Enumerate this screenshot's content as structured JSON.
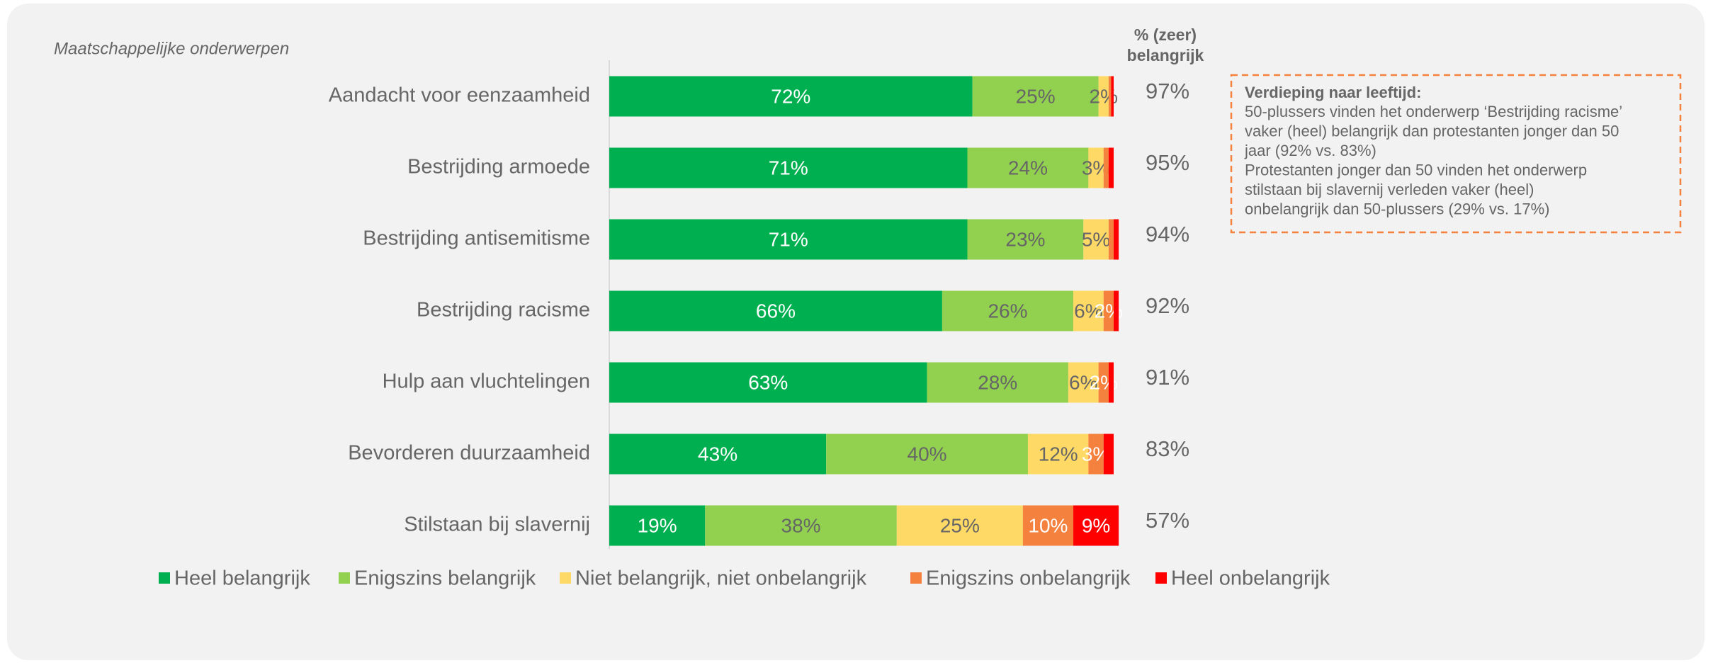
{
  "chart_data": {
    "type": "stacked_barh",
    "subtitle": "Maatschappelijke onderwerpen",
    "categories": [
      "Aandacht voor eenzaamheid",
      "Bestrijding armoede",
      "Bestrijding antisemitisme",
      "Bestrijding racisme",
      "Hulp aan vluchtelingen",
      "Bevorderen duurzaamheid",
      "Stilstaan bij slavernij"
    ],
    "xlim": [
      0,
      100
    ],
    "series": [
      {
        "name": "Heel belangrijk",
        "color": "#00b050",
        "label_color": "#ffffff",
        "values": [
          72,
          71,
          71,
          66,
          63,
          43,
          19
        ],
        "value_labels": [
          "72%",
          "71%",
          "71%",
          "66%",
          "63%",
          "43%",
          "19%"
        ]
      },
      {
        "name": "Enigszins belangrijk",
        "color": "#92d050",
        "label_color": "#666666",
        "values": [
          25,
          24,
          23,
          26,
          28,
          40,
          38
        ],
        "value_labels": [
          "25%",
          "24%",
          "23%",
          "26%",
          "28%",
          "40%",
          "38%"
        ]
      },
      {
        "name": "Niet belangrijk, niet onbelangrijk",
        "color": "#ffd966",
        "label_color": "#666666",
        "values": [
          2,
          3,
          5,
          6,
          6,
          12,
          25
        ],
        "value_labels": [
          "2%",
          "3%",
          "5%",
          "6%",
          "6%",
          "12%",
          "25%"
        ]
      },
      {
        "name": "Enigszins onbelangrijk",
        "color": "#f4813d",
        "label_color": "#ffffff",
        "values": [
          0.5,
          1,
          1,
          2,
          2,
          3,
          10
        ],
        "value_labels": [
          null,
          null,
          null,
          "2%",
          "2%",
          "3%",
          "10%"
        ]
      },
      {
        "name": "Heel onbelangrijk",
        "color": "#ff0000",
        "label_color": "#ffffff",
        "values": [
          0.5,
          1,
          1,
          1,
          1,
          2,
          9
        ],
        "value_labels": [
          null,
          null,
          null,
          null,
          null,
          null,
          "9%"
        ]
      }
    ],
    "totals": {
      "header": [
        "% (zeer)",
        "belangrijk"
      ],
      "values": [
        97,
        95,
        94,
        92,
        91,
        83,
        57
      ],
      "value_labels": [
        "97%",
        "95%",
        "94%",
        "92%",
        "91%",
        "83%",
        "57%"
      ]
    },
    "note": {
      "title": "Verdieping naar leeftijd:",
      "lines": [
        "50-plussers vinden het onderwerp ‘Bestrijding racisme’",
        "vaker (heel) belangrijk dan protestanten jonger dan 50",
        "jaar (92% vs. 83%)",
        "Protestanten jonger dan 50 vinden het onderwerp",
        "stilstaan bij slavernij verleden vaker (heel)",
        "onbelangrijk dan 50-plussers (29% vs. 17%)"
      ]
    }
  }
}
